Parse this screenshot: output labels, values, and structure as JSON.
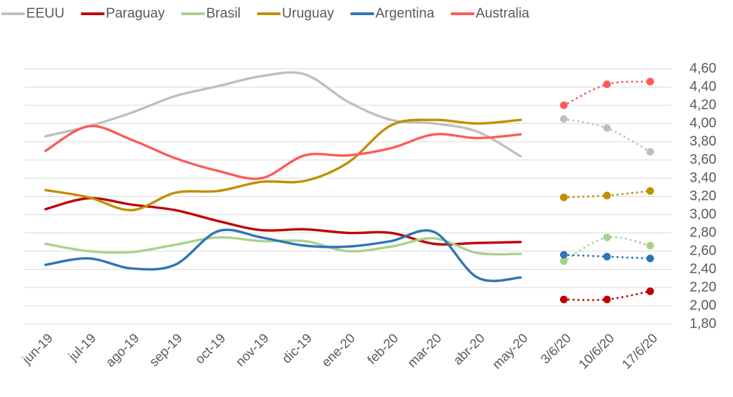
{
  "chart_data": {
    "type": "line",
    "categories": [
      "jun-19",
      "jul-19",
      "ago-19",
      "sep-19",
      "oct-19",
      "nov-19",
      "dic-19",
      "ene-20",
      "feb-20",
      "mar-20",
      "abr-20",
      "may-20",
      "3/6/20",
      "10/6/20",
      "17/6/20"
    ],
    "dotted_from_index": 12,
    "series": [
      {
        "name": "EEUU",
        "color": "#bfbfbf",
        "values": [
          3.86,
          3.97,
          4.12,
          4.3,
          4.41,
          4.52,
          4.54,
          4.24,
          4.04,
          4.0,
          3.91,
          3.64,
          4.05,
          3.95,
          3.69
        ]
      },
      {
        "name": "Paraguay",
        "color": "#c00000",
        "values": [
          3.06,
          3.18,
          3.11,
          3.05,
          2.93,
          2.83,
          2.84,
          2.8,
          2.8,
          2.68,
          2.69,
          2.7,
          2.07,
          2.07,
          2.16
        ]
      },
      {
        "name": "Brasil",
        "color": "#a9d18e",
        "values": [
          2.68,
          2.6,
          2.59,
          2.67,
          2.75,
          2.71,
          2.71,
          2.6,
          2.65,
          2.74,
          2.58,
          2.57,
          2.49,
          2.75,
          2.66
        ]
      },
      {
        "name": "Uruguay",
        "color": "#bf9000",
        "values": [
          3.27,
          3.19,
          3.05,
          3.24,
          3.26,
          3.36,
          3.37,
          3.57,
          3.98,
          4.04,
          4.0,
          4.04,
          3.19,
          3.21,
          3.26
        ]
      },
      {
        "name": "Argentina",
        "color": "#2e75b6",
        "values": [
          2.45,
          2.52,
          2.41,
          2.45,
          2.82,
          2.75,
          2.66,
          2.65,
          2.71,
          2.81,
          2.31,
          2.31,
          2.56,
          2.54,
          2.52
        ]
      },
      {
        "name": "Australia",
        "color": "#ff5a5a",
        "values": [
          3.7,
          3.97,
          3.82,
          3.62,
          3.48,
          3.4,
          3.65,
          3.65,
          3.73,
          3.88,
          3.84,
          3.88,
          4.2,
          4.43,
          4.46
        ]
      }
    ],
    "ylim": [
      1.8,
      4.6
    ],
    "yticks": [
      {
        "value": 1.8,
        "label": "1,80"
      },
      {
        "value": 2.0,
        "label": "2,00"
      },
      {
        "value": 2.2,
        "label": "2,20"
      },
      {
        "value": 2.4,
        "label": "2,40"
      },
      {
        "value": 2.6,
        "label": "2,60"
      },
      {
        "value": 2.8,
        "label": "2,80"
      },
      {
        "value": 3.0,
        "label": "3,00"
      },
      {
        "value": 3.2,
        "label": "3,20"
      },
      {
        "value": 3.4,
        "label": "3,40"
      },
      {
        "value": 3.6,
        "label": "3,60"
      },
      {
        "value": 3.8,
        "label": "3,80"
      },
      {
        "value": 4.0,
        "label": "4,00"
      },
      {
        "value": 4.2,
        "label": "4,20"
      },
      {
        "value": 4.4,
        "label": "4,40"
      },
      {
        "value": 4.6,
        "label": "4,60"
      }
    ],
    "yaxis_side": "right",
    "grid": true,
    "legend": "top"
  }
}
